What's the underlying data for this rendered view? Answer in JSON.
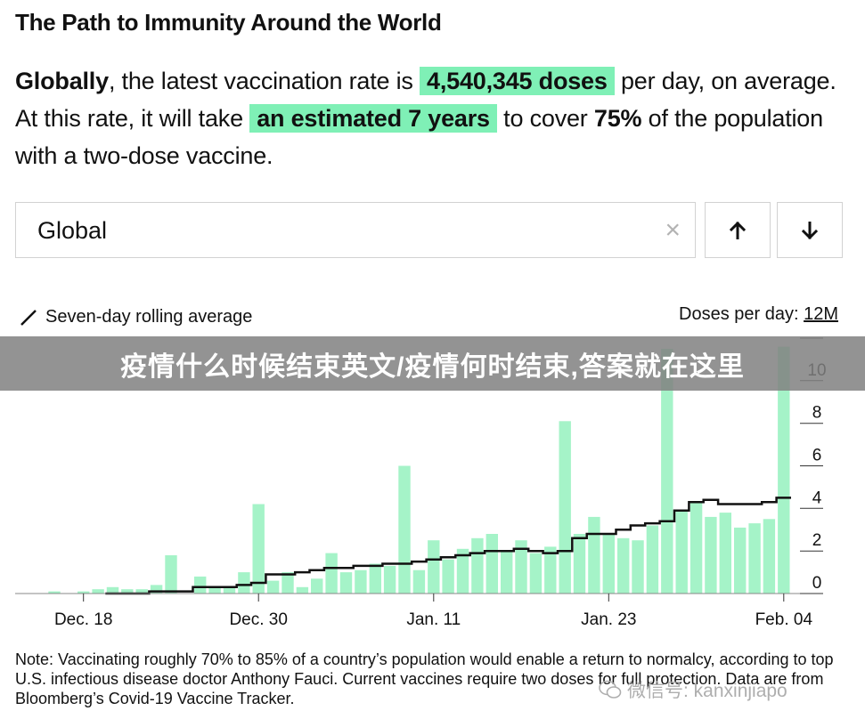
{
  "header": {
    "title": "The Path to Immunity Around the World"
  },
  "summary": {
    "region_label": "Globally",
    "text_1": ", the latest vaccination rate is ",
    "rate_highlight": "4,540,345 doses",
    "text_2": " per day, on average. At this rate, it will take ",
    "time_highlight": "an estimated 7 years",
    "text_3": " to cover ",
    "coverage_pct": "75%",
    "text_4": " of the population with a two-dose vaccine."
  },
  "controls": {
    "search_value": "Global",
    "clear_icon": "×",
    "up_icon": "arrow-up-icon",
    "down_icon": "arrow-down-icon"
  },
  "legend": {
    "line_label": "Seven-day rolling average",
    "y_title_prefix": "Doses per day: ",
    "y_title_max": "12M"
  },
  "chart_data": {
    "type": "bar",
    "ylabel": "Doses per day",
    "ylim": [
      0,
      12
    ],
    "y_ticks": [
      "0",
      "2",
      "4",
      "6",
      "8",
      "10",
      "12M"
    ],
    "x_ticks": [
      {
        "label": "Dec. 18",
        "date": "2020-12-18"
      },
      {
        "label": "Dec. 30",
        "date": "2020-12-30"
      },
      {
        "label": "Jan. 11",
        "date": "2021-01-11"
      },
      {
        "label": "Jan. 23",
        "date": "2021-01-23"
      },
      {
        "label": "Feb. 04",
        "date": "2021-02-04"
      }
    ],
    "series": [
      {
        "name": "Doses per day",
        "kind": "bar",
        "color": "#a5f3c8",
        "x": [
          "2020-12-14",
          "2020-12-15",
          "2020-12-16",
          "2020-12-17",
          "2020-12-18",
          "2020-12-19",
          "2020-12-20",
          "2020-12-21",
          "2020-12-22",
          "2020-12-23",
          "2020-12-24",
          "2020-12-25",
          "2020-12-26",
          "2020-12-27",
          "2020-12-28",
          "2020-12-29",
          "2020-12-30",
          "2020-12-31",
          "2021-01-01",
          "2021-01-02",
          "2021-01-03",
          "2021-01-04",
          "2021-01-05",
          "2021-01-06",
          "2021-01-07",
          "2021-01-08",
          "2021-01-09",
          "2021-01-10",
          "2021-01-11",
          "2021-01-12",
          "2021-01-13",
          "2021-01-14",
          "2021-01-15",
          "2021-01-16",
          "2021-01-17",
          "2021-01-18",
          "2021-01-19",
          "2021-01-20",
          "2021-01-21",
          "2021-01-22",
          "2021-01-23",
          "2021-01-24",
          "2021-01-25",
          "2021-01-26",
          "2021-01-27",
          "2021-01-28",
          "2021-01-29",
          "2021-01-30",
          "2021-01-31",
          "2021-02-01",
          "2021-02-02",
          "2021-02-03",
          "2021-02-04"
        ],
        "values": [
          0.0,
          0.0,
          0.1,
          0.0,
          0.1,
          0.2,
          0.3,
          0.2,
          0.2,
          0.4,
          1.8,
          0.0,
          0.8,
          0.3,
          0.3,
          1.0,
          4.2,
          0.6,
          1.0,
          0.3,
          0.7,
          1.9,
          1.0,
          1.1,
          1.4,
          1.3,
          6.0,
          1.1,
          2.5,
          1.6,
          2.1,
          2.6,
          2.8,
          2.0,
          2.5,
          1.9,
          2.2,
          8.1,
          2.8,
          3.6,
          2.8,
          2.6,
          2.5,
          3.2,
          11.5,
          3.9,
          4.3,
          3.6,
          3.8,
          3.1,
          3.3,
          3.5,
          11.6
        ]
      },
      {
        "name": "Seven-day rolling average",
        "kind": "step-line",
        "color": "#111111",
        "x": [
          "2020-12-20",
          "2020-12-21",
          "2020-12-22",
          "2020-12-23",
          "2020-12-24",
          "2020-12-25",
          "2020-12-26",
          "2020-12-27",
          "2020-12-28",
          "2020-12-29",
          "2020-12-30",
          "2020-12-31",
          "2021-01-01",
          "2021-01-02",
          "2021-01-03",
          "2021-01-04",
          "2021-01-05",
          "2021-01-06",
          "2021-01-07",
          "2021-01-08",
          "2021-01-09",
          "2021-01-10",
          "2021-01-11",
          "2021-01-12",
          "2021-01-13",
          "2021-01-14",
          "2021-01-15",
          "2021-01-16",
          "2021-01-17",
          "2021-01-18",
          "2021-01-19",
          "2021-01-20",
          "2021-01-21",
          "2021-01-22",
          "2021-01-23",
          "2021-01-24",
          "2021-01-25",
          "2021-01-26",
          "2021-01-27",
          "2021-01-28",
          "2021-01-29",
          "2021-01-30",
          "2021-01-31",
          "2021-02-01",
          "2021-02-02",
          "2021-02-03",
          "2021-02-04"
        ],
        "values": [
          0.0,
          0.0,
          0.0,
          0.1,
          0.1,
          0.1,
          0.3,
          0.3,
          0.3,
          0.4,
          0.5,
          0.9,
          0.9,
          1.0,
          1.1,
          1.2,
          1.2,
          1.3,
          1.3,
          1.4,
          1.4,
          1.5,
          1.6,
          1.7,
          1.8,
          1.9,
          2.0,
          2.0,
          2.1,
          2.0,
          1.9,
          2.0,
          2.6,
          2.8,
          2.8,
          3.0,
          3.2,
          3.3,
          3.4,
          3.9,
          4.3,
          4.4,
          4.2,
          4.2,
          4.2,
          4.3,
          4.5
        ]
      }
    ],
    "grid": false,
    "legend_position": "top-left"
  },
  "note": {
    "text": "Note: Vaccinating roughly 70% to 85% of a country’s population would enable a return to normalcy, according to top U.S. infectious disease doctor Anthony Fauci. Current vaccines require two doses for full protection. Data are from Bloomberg’s Covid-19 Vaccine Tracker."
  },
  "overlay": {
    "banner_text": "疫情什么时候结束英文/疫情何时结束,答案就在这里",
    "wechat_mark": "微信号: kanxinjiapo"
  },
  "colors": {
    "highlight": "#7ff0b6",
    "bar": "#a5f3c8",
    "line": "#111111",
    "border": "#d2d2d2"
  }
}
